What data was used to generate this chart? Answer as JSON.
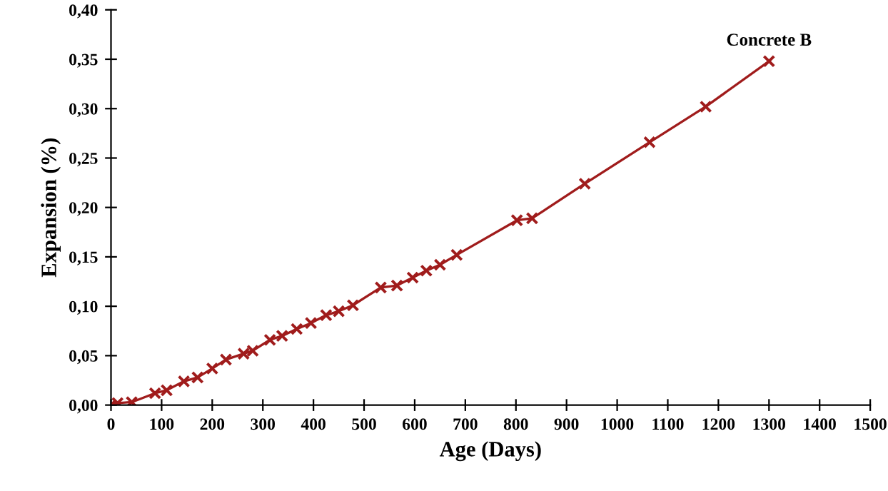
{
  "chart_data": {
    "type": "line",
    "xlabel": "Age (Days)",
    "ylabel": "Expansion (%)",
    "xlim": [
      0,
      1500
    ],
    "xticks": [
      0,
      100,
      200,
      300,
      400,
      500,
      600,
      700,
      800,
      900,
      1000,
      1100,
      1200,
      1300,
      1400,
      1500
    ],
    "ylim": [
      0,
      0.4
    ],
    "yticks": [
      {
        "value": 0,
        "label": "0,00"
      },
      {
        "value": 0.05,
        "label": "0,05"
      },
      {
        "value": 0.1,
        "label": "0,10"
      },
      {
        "value": 0.15,
        "label": "0,15"
      },
      {
        "value": 0.2,
        "label": "0,20"
      },
      {
        "value": 0.25,
        "label": "0,25"
      },
      {
        "value": 0.3,
        "label": "0,30"
      },
      {
        "value": 0.35,
        "label": "0,35"
      },
      {
        "value": 0.4,
        "label": "0,40"
      }
    ],
    "grid": false,
    "legend": false,
    "marker": "cross",
    "line_style": "solid",
    "series": [
      {
        "name": "Concrete B",
        "color": "#a01c1c",
        "x": [
          0,
          13,
          41,
          87,
          110,
          144,
          171,
          200,
          227,
          262,
          280,
          314,
          338,
          367,
          395,
          425,
          450,
          478,
          533,
          565,
          596,
          623,
          650,
          683,
          802,
          832,
          936,
          1064,
          1175,
          1300
        ],
        "values": [
          0,
          0.002,
          0.003,
          0.012,
          0.015,
          0.024,
          0.028,
          0.037,
          0.046,
          0.052,
          0.055,
          0.066,
          0.07,
          0.077,
          0.083,
          0.091,
          0.095,
          0.101,
          0.119,
          0.121,
          0.129,
          0.136,
          0.142,
          0.152,
          0.187,
          0.189,
          0.224,
          0.266,
          0.302,
          0.348
        ]
      }
    ]
  }
}
